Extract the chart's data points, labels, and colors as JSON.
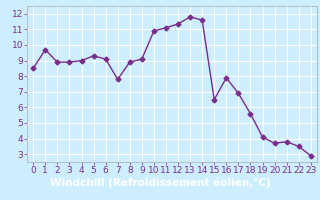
{
  "x": [
    0,
    1,
    2,
    3,
    4,
    5,
    6,
    7,
    8,
    9,
    10,
    11,
    12,
    13,
    14,
    15,
    16,
    17,
    18,
    19,
    20,
    21,
    22,
    23
  ],
  "y": [
    8.5,
    9.7,
    8.9,
    8.9,
    9.0,
    9.3,
    9.1,
    7.8,
    8.9,
    9.1,
    10.9,
    11.1,
    11.35,
    11.8,
    11.6,
    6.5,
    7.9,
    6.9,
    5.6,
    4.1,
    3.7,
    3.8,
    3.5,
    2.9
  ],
  "line_color": "#7B2D8B",
  "marker": "D",
  "markersize": 2.5,
  "linewidth": 1.0,
  "xlabel": "Windchill (Refroidissement éolien,°C)",
  "xlabel_fontsize": 7.5,
  "xlim": [
    -0.5,
    23.5
  ],
  "ylim": [
    2.5,
    12.5
  ],
  "yticks": [
    3,
    4,
    5,
    6,
    7,
    8,
    9,
    10,
    11,
    12
  ],
  "xticks": [
    0,
    1,
    2,
    3,
    4,
    5,
    6,
    7,
    8,
    9,
    10,
    11,
    12,
    13,
    14,
    15,
    16,
    17,
    18,
    19,
    20,
    21,
    22,
    23
  ],
  "background_color": "#cceeff",
  "grid_color": "#ffffff",
  "tick_color": "#7B2D8B",
  "tick_fontsize": 6.5,
  "bottom_bar_color": "#7B2D8B",
  "spine_color": "#aaaaaa"
}
